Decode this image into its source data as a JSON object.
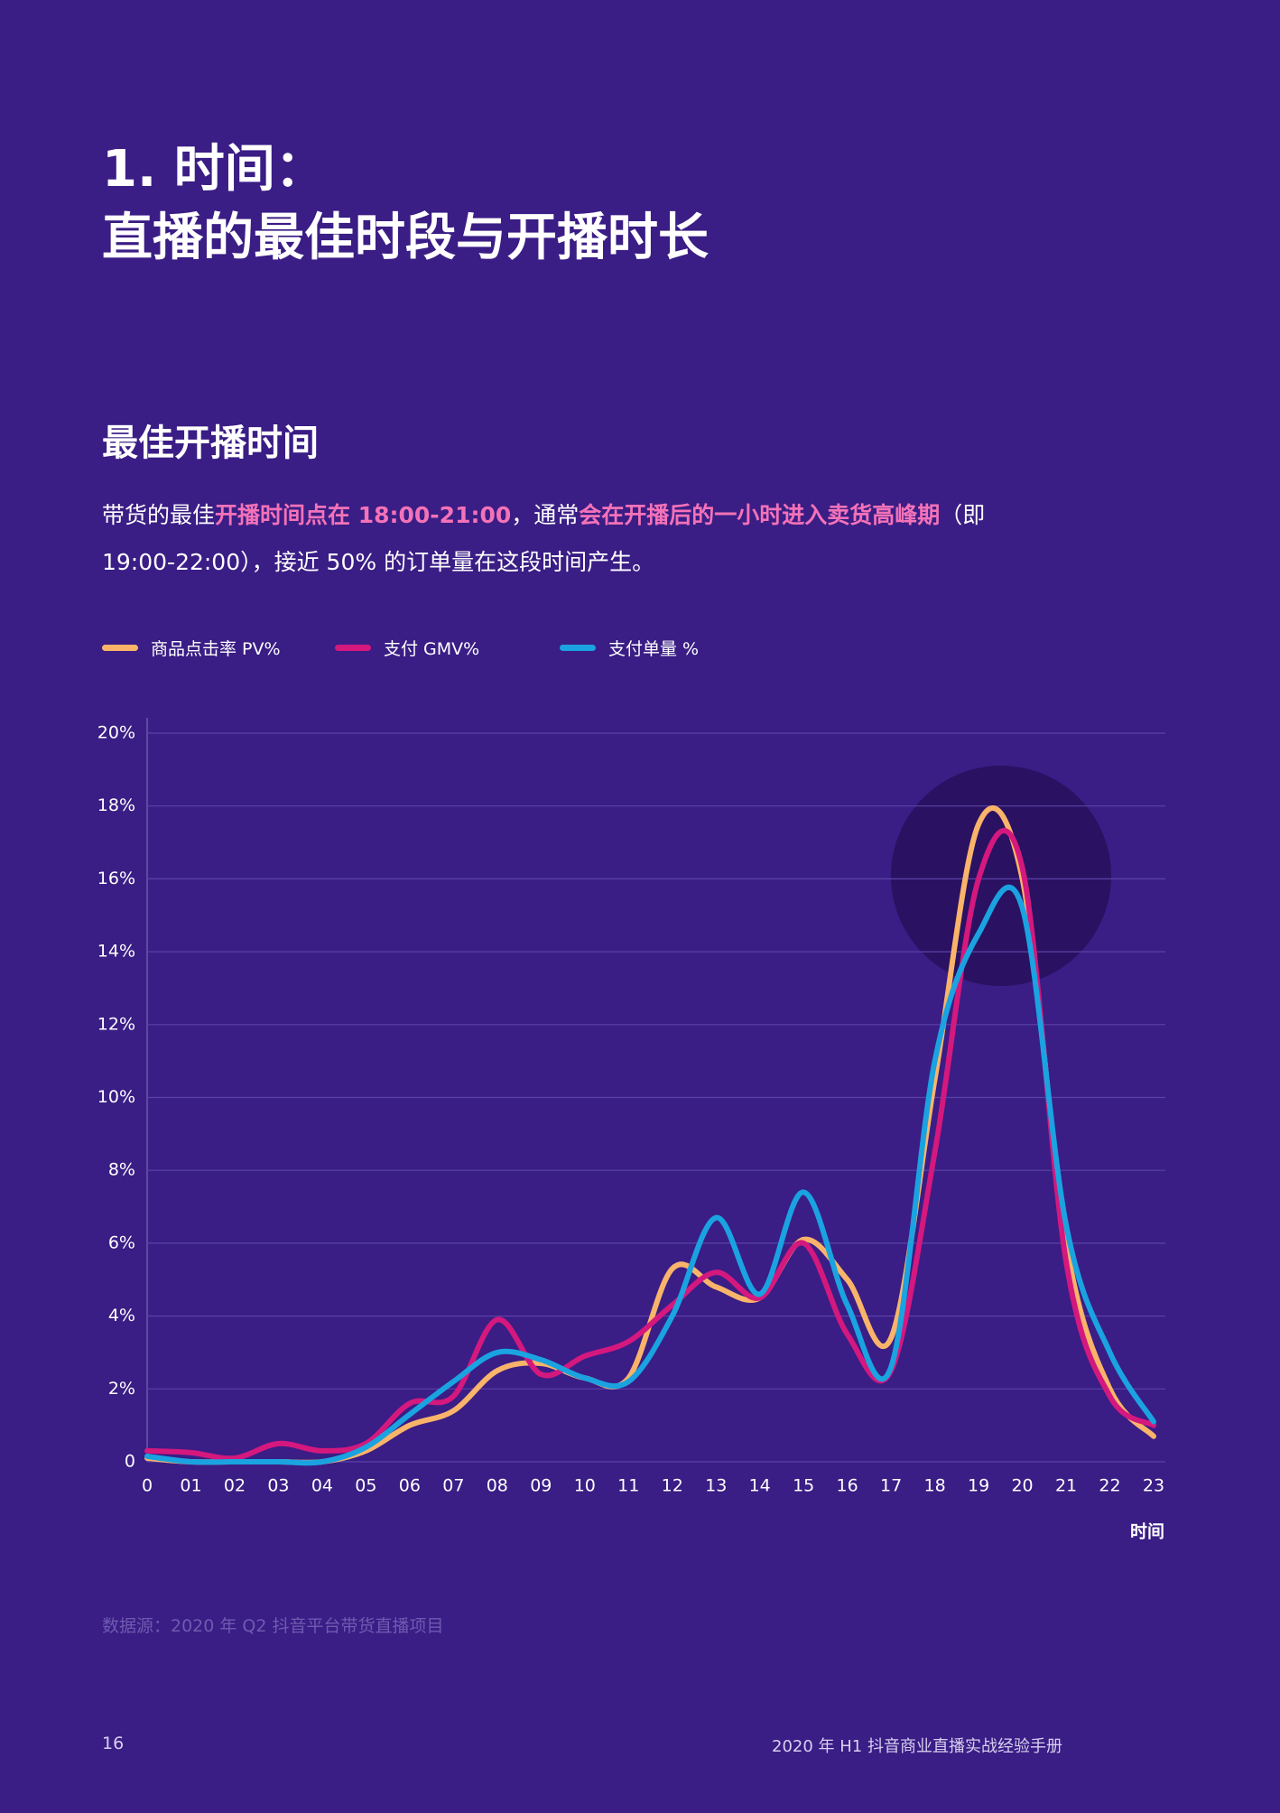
{
  "header": {
    "title_line1": "1. 时间：",
    "title_line2": "直播的最佳时段与开播时长"
  },
  "subtitle": "最佳开播时间",
  "paragraph": [
    {
      "text": "带货的最佳",
      "highlight": false
    },
    {
      "text": "开播时间点在 18:00-21:00",
      "highlight": true
    },
    {
      "text": "，通常",
      "highlight": false
    },
    {
      "text": "会在开播后的一小时进入卖货高峰期",
      "highlight": true
    },
    {
      "text": "（即 19:00-22:00），接近 50% 的订单量在这段时间产生。",
      "highlight": false
    }
  ],
  "chart_data": {
    "type": "line",
    "x_label": "时间",
    "categories": [
      "0",
      "01",
      "02",
      "03",
      "04",
      "05",
      "06",
      "07",
      "08",
      "09",
      "10",
      "11",
      "12",
      "13",
      "14",
      "15",
      "16",
      "17",
      "18",
      "19",
      "20",
      "21",
      "22",
      "23"
    ],
    "ylim": [
      0,
      20
    ],
    "yticks": [
      0,
      {
        "value": 2,
        "label": "2%"
      },
      {
        "value": 4,
        "label": "4%"
      },
      {
        "value": 6,
        "label": "6%"
      },
      {
        "value": 8,
        "label": "8%"
      },
      {
        "value": 10,
        "label": "10%"
      },
      {
        "value": 12,
        "label": "12%"
      },
      {
        "value": 14,
        "label": "14%"
      },
      {
        "value": 16,
        "label": "16%"
      },
      {
        "value": 18,
        "label": "18%"
      },
      {
        "value": 20,
        "label": "20%"
      }
    ],
    "grid": true,
    "series": [
      {
        "name": "商品点击率 PV%",
        "color": "#f9b46a",
        "values": [
          0.1,
          0,
          0,
          0,
          0,
          0.3,
          1.0,
          1.4,
          2.5,
          2.7,
          2.3,
          2.3,
          5.3,
          4.8,
          4.5,
          6.1,
          5.0,
          3.4,
          10.5,
          17.5,
          16.0,
          6.0,
          2.0,
          0.7
        ]
      },
      {
        "name": "支付 GMV%",
        "color": "#d4187e",
        "values": [
          0.3,
          0.25,
          0.1,
          0.5,
          0.3,
          0.5,
          1.6,
          1.8,
          3.9,
          2.4,
          2.9,
          3.3,
          4.3,
          5.2,
          4.5,
          6.0,
          3.5,
          2.5,
          8.5,
          16.0,
          16.3,
          5.5,
          1.8,
          1.0
        ]
      },
      {
        "name": "支付单量 %",
        "color": "#1aa3e0",
        "values": [
          0.15,
          0,
          0,
          0,
          0,
          0.4,
          1.3,
          2.2,
          3.0,
          2.8,
          2.3,
          2.2,
          4.0,
          6.7,
          4.6,
          7.4,
          4.3,
          2.6,
          11.0,
          14.5,
          15.2,
          6.5,
          3.0,
          1.1
        ]
      }
    ]
  },
  "source": "数据源：2020 年 Q2 抖音平台带货直播项目",
  "footer": {
    "page_number": "16",
    "title": "2020 年 H1 抖音商业直播实战经验手册"
  }
}
